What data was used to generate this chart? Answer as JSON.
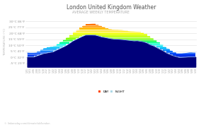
{
  "title": "London United Kingdom Weather",
  "subtitle": "AVERAGE WEEKLY TEMPERATURE",
  "ylabel": "TEMPERATURE (°C)",
  "yticks": [
    -5,
    0,
    5,
    10,
    15,
    20,
    25,
    30
  ],
  "ylabels": [
    "-5°C 23°F",
    "0°C 32°F",
    "5°C 41°F",
    "10°C 50°F",
    "15°C 59°F",
    "20°C 68°F",
    "25°C 77°F",
    "30°C 86°F"
  ],
  "ylim": [
    -8,
    34
  ],
  "watermark": "© linkersday.com/climate/uk/london",
  "plot_bg": "#ffffff",
  "legend_day_color": "#ff4500",
  "legend_night_color": "#add8e6",
  "gradient_stops": [
    [
      0.0,
      "#00007a"
    ],
    [
      0.15,
      "#0000cc"
    ],
    [
      0.28,
      "#0055ff"
    ],
    [
      0.36,
      "#00aaff"
    ],
    [
      0.44,
      "#00ffee"
    ],
    [
      0.5,
      "#00ff66"
    ],
    [
      0.56,
      "#88ff00"
    ],
    [
      0.62,
      "#ccff00"
    ],
    [
      0.68,
      "#ffff00"
    ],
    [
      0.75,
      "#ffcc00"
    ],
    [
      0.82,
      "#ff8800"
    ],
    [
      0.9,
      "#ff4400"
    ],
    [
      1.0,
      "#ff0000"
    ]
  ]
}
